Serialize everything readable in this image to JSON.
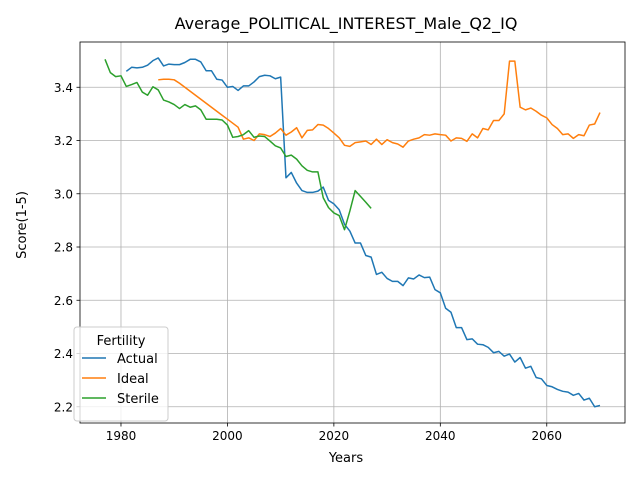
{
  "chart_data": {
    "type": "line",
    "title": "Average_POLITICAL_INTEREST_Male_Q2_IQ",
    "xlabel": "Years",
    "ylabel": "Score(1-5)",
    "xlim": [
      1972.3,
      2074.7
    ],
    "ylim": [
      2.139,
      3.57
    ],
    "xticks": [
      1980,
      2000,
      2020,
      2040,
      2060
    ],
    "yticks": [
      2.2,
      2.4,
      2.6,
      2.8,
      3.0,
      3.2,
      3.4
    ],
    "grid": true,
    "legend": {
      "title": "Fertility",
      "placement": "lower-left"
    },
    "series": [
      {
        "name": "Actual",
        "color": "#1f77b4",
        "x": [
          1981,
          1982,
          1983,
          1984,
          1985,
          1986,
          1987,
          1988,
          1989,
          1990,
          1991,
          1992,
          1993,
          1994,
          1995,
          1996,
          1997,
          1998,
          1999,
          2000,
          2001,
          2002,
          2003,
          2004,
          2005,
          2006,
          2007,
          2008,
          2009,
          2010,
          2011,
          2012,
          2013,
          2014,
          2015,
          2016,
          2017,
          2018,
          2019,
          2020,
          2021,
          2022,
          2023,
          2024,
          2025,
          2026,
          2027,
          2028,
          2029,
          2030,
          2031,
          2032,
          2033,
          2034,
          2035,
          2036,
          2037,
          2038,
          2039,
          2040,
          2041,
          2042,
          2043,
          2044,
          2045,
          2046,
          2047,
          2048,
          2049,
          2050,
          2051,
          2052,
          2053,
          2054,
          2055,
          2056,
          2057,
          2058,
          2059,
          2060,
          2061,
          2062,
          2063,
          2064,
          2065,
          2066,
          2067,
          2068,
          2069,
          2070
        ],
        "values": [
          3.46,
          3.475,
          3.473,
          3.475,
          3.483,
          3.5,
          3.51,
          3.48,
          3.487,
          3.485,
          3.485,
          3.493,
          3.505,
          3.505,
          3.495,
          3.462,
          3.462,
          3.43,
          3.427,
          3.4,
          3.403,
          3.388,
          3.405,
          3.405,
          3.42,
          3.44,
          3.445,
          3.443,
          3.432,
          3.438,
          3.06,
          3.08,
          3.04,
          3.012,
          3.005,
          3.005,
          3.01,
          3.025,
          2.975,
          2.962,
          2.94,
          2.885,
          2.86,
          2.815,
          2.815,
          2.768,
          2.762,
          2.697,
          2.705,
          2.682,
          2.671,
          2.671,
          2.655,
          2.684,
          2.68,
          2.695,
          2.685,
          2.687,
          2.64,
          2.628,
          2.57,
          2.555,
          2.497,
          2.497,
          2.452,
          2.455,
          2.435,
          2.433,
          2.423,
          2.403,
          2.408,
          2.39,
          2.398,
          2.368,
          2.385,
          2.345,
          2.352,
          2.31,
          2.305,
          2.28,
          2.275,
          2.265,
          2.258,
          2.255,
          2.243,
          2.25,
          2.225,
          2.232,
          2.2,
          2.205
        ]
      },
      {
        "name": "Ideal",
        "color": "#ff7f0e",
        "x": [
          1987,
          1988,
          1989,
          1990,
          1991,
          1992,
          1993,
          1994,
          1995,
          1996,
          1997,
          1998,
          1999,
          2000,
          2001,
          2002,
          2003,
          2004,
          2005,
          2006,
          2007,
          2008,
          2009,
          2010,
          2011,
          2012,
          2013,
          2014,
          2015,
          2016,
          2017,
          2018,
          2019,
          2020,
          2021,
          2022,
          2023,
          2024,
          2025,
          2026,
          2027,
          2028,
          2029,
          2030,
          2031,
          2032,
          2033,
          2034,
          2035,
          2036,
          2037,
          2038,
          2039,
          2040,
          2041,
          2042,
          2043,
          2044,
          2045,
          2046,
          2047,
          2048,
          2049,
          2050,
          2051,
          2052,
          2053,
          2054,
          2055,
          2056,
          2057,
          2058,
          2059,
          2060,
          2061,
          2062,
          2063,
          2064,
          2065,
          2066,
          2067,
          2068,
          2069,
          2070
        ],
        "values": [
          3.428,
          3.43,
          3.43,
          3.428,
          3.415,
          3.4,
          3.385,
          3.37,
          3.355,
          3.34,
          3.325,
          3.31,
          3.295,
          3.28,
          3.265,
          3.25,
          3.205,
          3.21,
          3.2,
          3.225,
          3.222,
          3.215,
          3.228,
          3.245,
          3.22,
          3.232,
          3.248,
          3.21,
          3.238,
          3.24,
          3.26,
          3.258,
          3.245,
          3.228,
          3.21,
          3.182,
          3.178,
          3.192,
          3.195,
          3.198,
          3.185,
          3.205,
          3.185,
          3.203,
          3.192,
          3.187,
          3.175,
          3.198,
          3.205,
          3.21,
          3.222,
          3.22,
          3.225,
          3.222,
          3.22,
          3.198,
          3.21,
          3.208,
          3.197,
          3.225,
          3.21,
          3.245,
          3.24,
          3.275,
          3.275,
          3.3,
          3.498,
          3.498,
          3.325,
          3.315,
          3.322,
          3.31,
          3.295,
          3.285,
          3.26,
          3.245,
          3.222,
          3.225,
          3.208,
          3.222,
          3.218,
          3.258,
          3.262,
          3.305
        ]
      },
      {
        "name": "Sterile",
        "color": "#2ca02c",
        "x": [
          1977,
          1978,
          1979,
          1980,
          1981,
          1982,
          1983,
          1984,
          1985,
          1986,
          1987,
          1988,
          1989,
          1990,
          1991,
          1992,
          1993,
          1994,
          1995,
          1996,
          1997,
          1998,
          1999,
          2000,
          2001,
          2002,
          2003,
          2004,
          2005,
          2006,
          2007,
          2008,
          2009,
          2010,
          2011,
          2012,
          2013,
          2014,
          2015,
          2016,
          2017,
          2018,
          2019,
          2020,
          2021,
          2022,
          2023,
          2024,
          2025,
          2026,
          2027
        ],
        "values": [
          3.505,
          3.455,
          3.44,
          3.443,
          3.403,
          3.41,
          3.418,
          3.382,
          3.37,
          3.402,
          3.39,
          3.352,
          3.345,
          3.335,
          3.32,
          3.335,
          3.325,
          3.33,
          3.315,
          3.28,
          3.28,
          3.28,
          3.277,
          3.258,
          3.212,
          3.215,
          3.222,
          3.237,
          3.212,
          3.217,
          3.215,
          3.198,
          3.18,
          3.172,
          3.14,
          3.145,
          3.13,
          3.105,
          3.088,
          3.082,
          3.082,
          2.985,
          2.948,
          2.928,
          2.918,
          2.865,
          2.935,
          3.012,
          2.99,
          2.968,
          2.945
        ]
      }
    ]
  }
}
